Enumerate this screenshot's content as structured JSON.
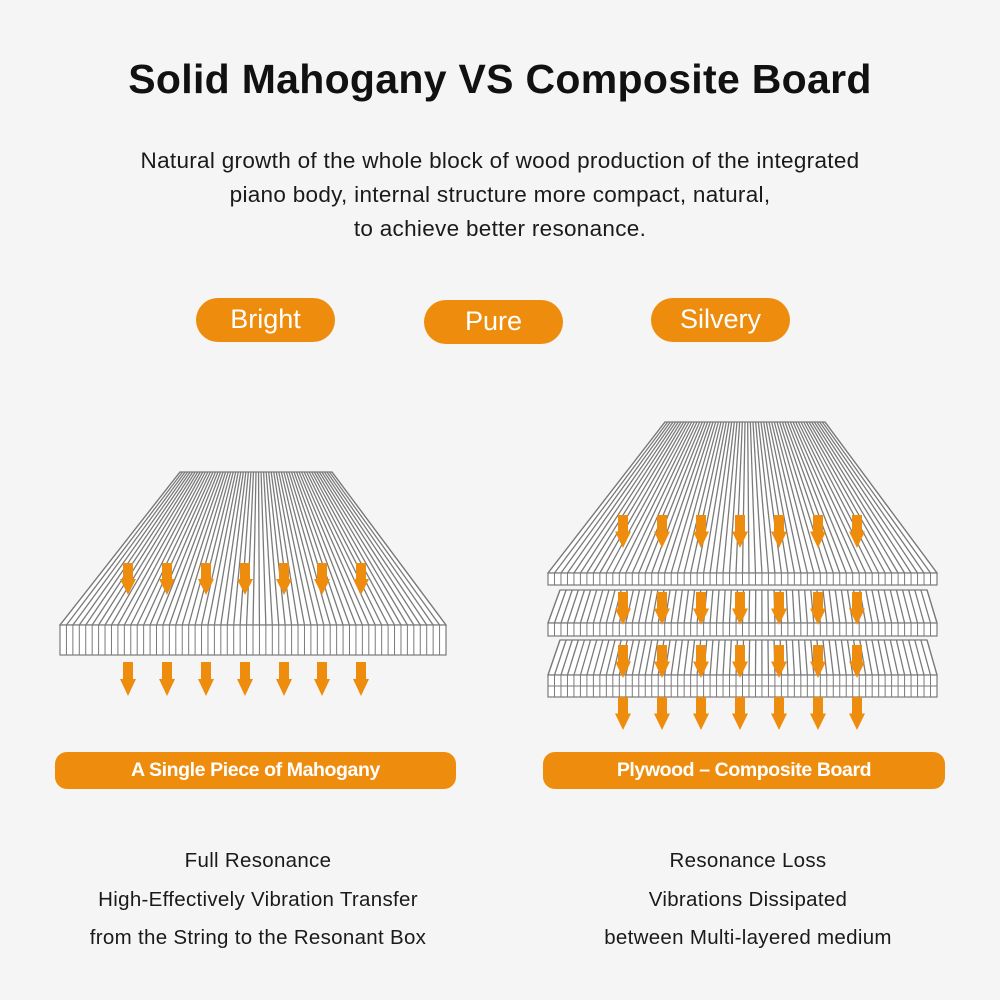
{
  "title": "Solid Mahogany VS Composite Board",
  "subtitle": [
    "Natural growth of the whole block of wood production of the integrated",
    "piano body, internal structure more compact, natural,",
    "to achieve better resonance."
  ],
  "tags": [
    "Bright",
    "Pure",
    "Silvery"
  ],
  "left": {
    "label": "A Single Piece of Mahogany",
    "description": [
      "Full Resonance",
      "High-Effectively Vibration Transfer",
      "from the String to the Resonant Box"
    ]
  },
  "right": {
    "label": "Plywood – Composite Board",
    "description": [
      "Resonance Loss",
      "Vibrations Dissipated",
      "between Multi-layered medium"
    ]
  },
  "colors": {
    "accent": "#ee8d0d",
    "board_lines": "#7a7a7a",
    "background": "#f5f5f5"
  },
  "icons": {
    "arrow": "arrow-down-icon"
  }
}
